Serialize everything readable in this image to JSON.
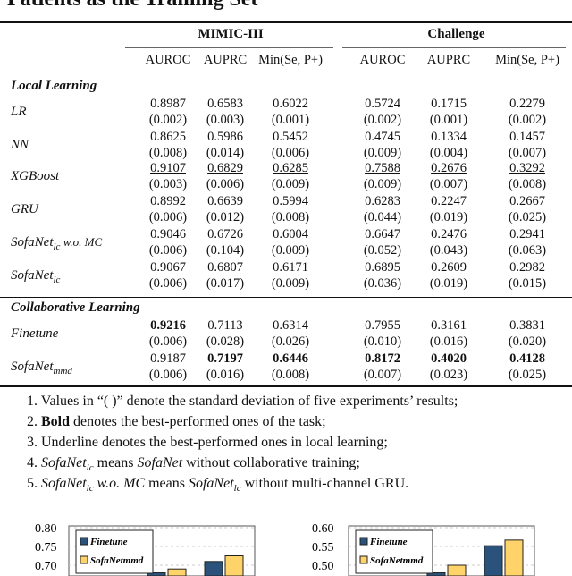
{
  "title": "Patients as the Training Set",
  "groups": [
    "MIMIC-III",
    "Challenge"
  ],
  "metrics": [
    "AUROC",
    "AUPRC",
    "Min(Se, P+)",
    "AUROC",
    "AUPRC",
    "Min(Se, P+)"
  ],
  "sections": [
    {
      "name": "Local Learning",
      "rows": [
        {
          "label": "LR",
          "mean": [
            "0.8987",
            "0.6583",
            "0.6022",
            "0.5724",
            "0.1715",
            "0.2279"
          ],
          "std": [
            "(0.002)",
            "(0.003)",
            "(0.001)",
            "(0.002)",
            "(0.001)",
            "(0.002)"
          ]
        },
        {
          "label": "NN",
          "mean": [
            "0.8625",
            "0.5986",
            "0.5452",
            "0.4745",
            "0.1334",
            "0.1457"
          ],
          "std": [
            "(0.008)",
            "(0.014)",
            "(0.006)",
            "(0.009)",
            "(0.004)",
            "(0.007)"
          ]
        },
        {
          "label": "XGBoost",
          "mean": [
            "0.9107",
            "0.6829",
            "0.6285",
            "0.7588",
            "0.2676",
            "0.3292"
          ],
          "std": [
            "(0.003)",
            "(0.006)",
            "(0.009)",
            "(0.009)",
            "(0.007)",
            "(0.008)"
          ],
          "underline": [
            0,
            1,
            2,
            3,
            4,
            5
          ]
        },
        {
          "label": "GRU",
          "mean": [
            "0.8992",
            "0.6639",
            "0.5994",
            "0.6283",
            "0.2247",
            "0.2667"
          ],
          "std": [
            "(0.006)",
            "(0.012)",
            "(0.008)",
            "(0.044)",
            "(0.019)",
            "(0.025)"
          ]
        },
        {
          "label": "SofaNet",
          "sub": "lc",
          "suffix": " w.o. MC",
          "mean": [
            "0.9046",
            "0.6726",
            "0.6004",
            "0.6647",
            "0.2476",
            "0.2941"
          ],
          "std": [
            "(0.006)",
            "(0.104)",
            "(0.009)",
            "(0.052)",
            "(0.043)",
            "(0.063)"
          ]
        },
        {
          "label": "SofaNet",
          "sub": "lc",
          "mean": [
            "0.9067",
            "0.6807",
            "0.6171",
            "0.6895",
            "0.2609",
            "0.2982"
          ],
          "std": [
            "(0.006)",
            "(0.017)",
            "(0.009)",
            "(0.036)",
            "(0.019)",
            "(0.015)"
          ]
        }
      ]
    },
    {
      "name": "Collaborative Learning",
      "rows": [
        {
          "label": "Finetune",
          "mean": [
            "0.9216",
            "0.7113",
            "0.6314",
            "0.7955",
            "0.3161",
            "0.3831"
          ],
          "std": [
            "(0.006)",
            "(0.028)",
            "(0.026)",
            "(0.010)",
            "(0.016)",
            "(0.020)"
          ],
          "bold": [
            0
          ]
        },
        {
          "label": "SofaNet",
          "sub": "mmd",
          "mean": [
            "0.9187",
            "0.7197",
            "0.6446",
            "0.8172",
            "0.4020",
            "0.4128"
          ],
          "std": [
            "(0.006)",
            "(0.016)",
            "(0.008)",
            "(0.007)",
            "(0.023)",
            "(0.025)"
          ],
          "bold": [
            1,
            2,
            3,
            4,
            5
          ]
        }
      ]
    }
  ],
  "notes": [
    "1. Values in “( )” denote the standard deviation of five experiments’ results;",
    "2. Bold denotes the best-performed ones of the task;",
    "3. Underline denotes the best-performed ones in local learning;",
    "4. SofaNet_lc means SofaNet without collaborative training;",
    "5. SofaNet_lc w.o. MC means SofaNet_lc without multi-channel GRU."
  ],
  "chart_data": [
    {
      "type": "bar",
      "yticks": [
        "0.80",
        "0.75",
        "0.70"
      ],
      "ylim": [
        0.65,
        0.8
      ],
      "series": [
        {
          "name": "Finetune",
          "values": [
            0.68,
            0.71
          ]
        },
        {
          "name": "SofaNetmmd",
          "values": [
            0.69,
            0.725
          ]
        }
      ],
      "legend": "top-left",
      "colors": [
        "#2b527a",
        "#fdd36a"
      ]
    },
    {
      "type": "bar",
      "yticks": [
        "0.60",
        "0.55",
        "0.50"
      ],
      "ylim": [
        0.45,
        0.6
      ],
      "series": [
        {
          "name": "Finetune",
          "values": [
            0.48,
            0.552
          ]
        },
        {
          "name": "SofaNetmmd",
          "values": [
            0.5,
            0.567
          ]
        }
      ],
      "legend": "top-left",
      "colors": [
        "#2b527a",
        "#fdd36a"
      ]
    }
  ]
}
